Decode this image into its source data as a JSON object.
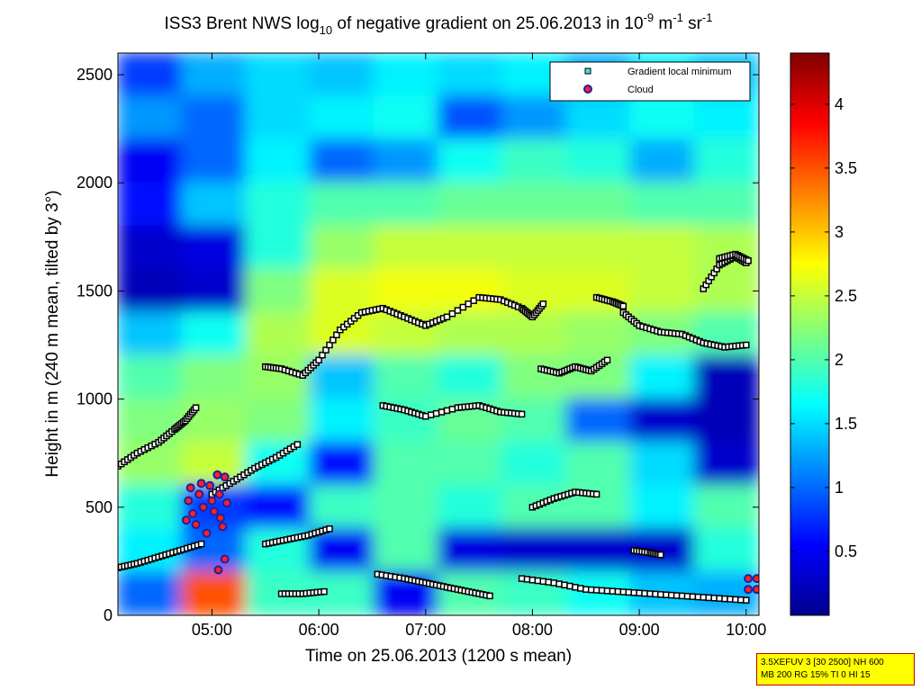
{
  "chart_data": {
    "type": "heatmap",
    "title": {
      "prefix": "ISS3 Brent NWS log",
      "prefix_sub": "10",
      "middle": " of negative gradient on 25.06.2013 in 10",
      "exp1": "-9",
      "mid2": " m",
      "exp2": "-1",
      "mid3": " sr",
      "exp3": "-1"
    },
    "xlabel": "Time on 25.06.2013 (1200 s mean)",
    "ylabel": "Height in m (240 m mean, tilted by 3°)",
    "xlim_hours": [
      4.12,
      10.12
    ],
    "ylim": [
      0,
      2600
    ],
    "x_ticks": [
      {
        "value": 5,
        "label": "05:00"
      },
      {
        "value": 6,
        "label": "06:00"
      },
      {
        "value": 7,
        "label": "07:00"
      },
      {
        "value": 8,
        "label": "08:00"
      },
      {
        "value": 9,
        "label": "09:00"
      },
      {
        "value": 10,
        "label": "10:00"
      }
    ],
    "y_ticks": [
      {
        "value": 0,
        "label": "0"
      },
      {
        "value": 500,
        "label": "500"
      },
      {
        "value": 1000,
        "label": "1000"
      },
      {
        "value": 1500,
        "label": "1500"
      },
      {
        "value": 2000,
        "label": "2000"
      },
      {
        "value": 2500,
        "label": "2500"
      }
    ],
    "colorbar": {
      "range": [
        0,
        4.4
      ],
      "colormap": "jet",
      "ticks": [
        {
          "value": 0.5,
          "label": "0.5"
        },
        {
          "value": 1,
          "label": "1"
        },
        {
          "value": 1.5,
          "label": "1.5"
        },
        {
          "value": 2,
          "label": "2"
        },
        {
          "value": 2.5,
          "label": "2.5"
        },
        {
          "value": 3,
          "label": "3"
        },
        {
          "value": 3.5,
          "label": "3.5"
        },
        {
          "value": 4,
          "label": "4"
        }
      ]
    },
    "legend": {
      "placement": "top-right",
      "entries": [
        {
          "label": "Gradient local minimum",
          "marker": "square",
          "color": "#40e0e0"
        },
        {
          "label": "Cloud",
          "marker": "circle",
          "color": "#ff2020",
          "edge": "#2020a0"
        }
      ]
    },
    "heatmap": {
      "note": "approximate log10 negative gradient, rows from top (2600 m) to bottom (0 m), 10 columns spanning 04:07 to 10:07",
      "row_heights_top_to_bottom": [
        2500,
        2300,
        2100,
        1900,
        1700,
        1500,
        1300,
        1100,
        900,
        700,
        500,
        300,
        100
      ],
      "columns_hours": [
        4.4,
        5.0,
        5.6,
        6.2,
        6.8,
        7.4,
        8.0,
        8.6,
        9.2,
        9.8
      ],
      "values": [
        [
          0.8,
          1.3,
          1.5,
          1.4,
          1.6,
          1.5,
          1.6,
          1.3,
          1.6,
          1.4
        ],
        [
          1.2,
          1.0,
          1.5,
          1.6,
          1.7,
          0.9,
          1.2,
          1.5,
          1.7,
          1.6
        ],
        [
          0.5,
          1.0,
          1.6,
          1.0,
          1.2,
          1.7,
          1.9,
          1.8,
          1.3,
          1.8
        ],
        [
          0.6,
          1.4,
          1.8,
          2.0,
          2.0,
          2.1,
          2.1,
          2.1,
          2.0,
          2.0
        ],
        [
          0.3,
          0.4,
          1.8,
          2.3,
          2.5,
          2.5,
          2.5,
          2.5,
          2.5,
          2.4
        ],
        [
          0.2,
          0.3,
          2.2,
          2.6,
          2.7,
          2.7,
          2.6,
          2.6,
          2.5,
          2.4
        ],
        [
          1.4,
          1.7,
          2.4,
          2.6,
          2.5,
          2.4,
          2.4,
          2.3,
          2.2,
          2.0
        ],
        [
          2.0,
          2.2,
          2.3,
          1.4,
          2.0,
          1.8,
          2.2,
          2.2,
          1.6,
          0.2
        ],
        [
          2.2,
          2.3,
          2.2,
          1.6,
          1.9,
          2.1,
          2.0,
          1.0,
          0.3,
          0.2
        ],
        [
          2.3,
          2.5,
          1.7,
          0.6,
          2.0,
          2.0,
          1.8,
          2.0,
          1.5,
          0.3
        ],
        [
          1.8,
          0.8,
          0.6,
          1.9,
          2.0,
          1.8,
          2.0,
          2.0,
          1.6,
          2.0
        ],
        [
          1.6,
          1.0,
          1.8,
          0.5,
          2.0,
          0.4,
          0.3,
          0.3,
          0.3,
          1.8
        ],
        [
          1.0,
          3.5,
          1.9,
          1.9,
          0.5,
          2.0,
          1.9,
          1.7,
          1.4,
          1.3
        ]
      ]
    },
    "gradient_local_minimum_traces": [
      {
        "t": [
          4.12,
          4.3,
          4.5,
          4.65,
          4.75,
          4.85
        ],
        "h": [
          690,
          750,
          800,
          860,
          900,
          960
        ]
      },
      {
        "t": [
          5.0,
          5.2,
          5.4,
          5.6,
          5.8
        ],
        "h": [
          560,
          620,
          680,
          730,
          790
        ]
      },
      {
        "t": [
          5.5,
          5.65,
          5.85
        ],
        "h": [
          1150,
          1140,
          1110
        ]
      },
      {
        "t": [
          5.85,
          6.0,
          6.2,
          6.4,
          6.6,
          6.8,
          7.0,
          7.2,
          7.5,
          7.7,
          7.9,
          8.0,
          8.1
        ],
        "h": [
          1110,
          1180,
          1320,
          1400,
          1420,
          1380,
          1340,
          1380,
          1470,
          1460,
          1420,
          1380,
          1440
        ]
      },
      {
        "t": [
          6.6,
          6.8,
          7.0,
          7.3,
          7.5,
          7.7,
          7.9
        ],
        "h": [
          970,
          950,
          920,
          960,
          970,
          940,
          930
        ]
      },
      {
        "t": [
          8.08,
          8.25,
          8.4,
          8.55,
          8.7
        ],
        "h": [
          1140,
          1120,
          1150,
          1130,
          1180
        ]
      },
      {
        "t": [
          8.6,
          8.75,
          8.85
        ],
        "h": [
          1470,
          1450,
          1430
        ]
      },
      {
        "t": [
          8.85,
          9.0,
          9.2,
          9.4,
          9.6,
          9.8,
          10.0
        ],
        "h": [
          1400,
          1340,
          1310,
          1300,
          1260,
          1240,
          1250
        ]
      },
      {
        "t": [
          9.6,
          9.75,
          9.9,
          10.0
        ],
        "h": [
          1510,
          1620,
          1660,
          1630
        ]
      },
      {
        "t": [
          9.75,
          9.9,
          10.02
        ],
        "h": [
          1650,
          1670,
          1640
        ]
      },
      {
        "t": [
          4.12,
          4.3,
          4.5,
          4.7,
          4.9
        ],
        "h": [
          220,
          240,
          270,
          300,
          330
        ]
      },
      {
        "t": [
          5.5,
          5.7,
          5.9,
          6.1
        ],
        "h": [
          330,
          350,
          370,
          400
        ]
      },
      {
        "t": [
          8.0,
          8.2,
          8.4,
          8.6
        ],
        "h": [
          500,
          540,
          570,
          560
        ]
      },
      {
        "t": [
          5.65,
          5.85,
          6.05
        ],
        "h": [
          100,
          100,
          110
        ]
      },
      {
        "t": [
          6.55,
          6.8,
          7.0,
          7.2,
          7.4,
          7.6
        ],
        "h": [
          190,
          170,
          150,
          130,
          110,
          90
        ]
      },
      {
        "t": [
          7.9,
          8.2,
          8.5,
          8.8,
          9.1,
          9.4,
          9.7,
          10.0
        ],
        "h": [
          170,
          150,
          120,
          110,
          100,
          90,
          80,
          70
        ]
      },
      {
        "t": [
          8.95,
          9.1,
          9.2
        ],
        "h": [
          300,
          290,
          280
        ]
      }
    ],
    "cloud_points": [
      {
        "t": 4.78,
        "h": 530
      },
      {
        "t": 4.8,
        "h": 590
      },
      {
        "t": 4.82,
        "h": 470
      },
      {
        "t": 4.85,
        "h": 420
      },
      {
        "t": 4.88,
        "h": 560
      },
      {
        "t": 4.9,
        "h": 610
      },
      {
        "t": 4.92,
        "h": 500
      },
      {
        "t": 4.95,
        "h": 380
      },
      {
        "t": 4.98,
        "h": 600
      },
      {
        "t": 5.0,
        "h": 530
      },
      {
        "t": 5.02,
        "h": 480
      },
      {
        "t": 5.05,
        "h": 650
      },
      {
        "t": 5.07,
        "h": 560
      },
      {
        "t": 5.08,
        "h": 450
      },
      {
        "t": 5.1,
        "h": 410
      },
      {
        "t": 5.12,
        "h": 640
      },
      {
        "t": 5.14,
        "h": 520
      },
      {
        "t": 5.06,
        "h": 210
      },
      {
        "t": 5.12,
        "h": 260
      },
      {
        "t": 4.76,
        "h": 440
      },
      {
        "t": 10.02,
        "h": 170
      },
      {
        "t": 10.02,
        "h": 120
      },
      {
        "t": 10.1,
        "h": 170
      },
      {
        "t": 10.1,
        "h": 120
      }
    ]
  },
  "info_box": {
    "line1": "3.5XEFUV 3 [30 2500] NH 600",
    "line2": "MB 200 RG 15% TI 0 HI 15"
  }
}
